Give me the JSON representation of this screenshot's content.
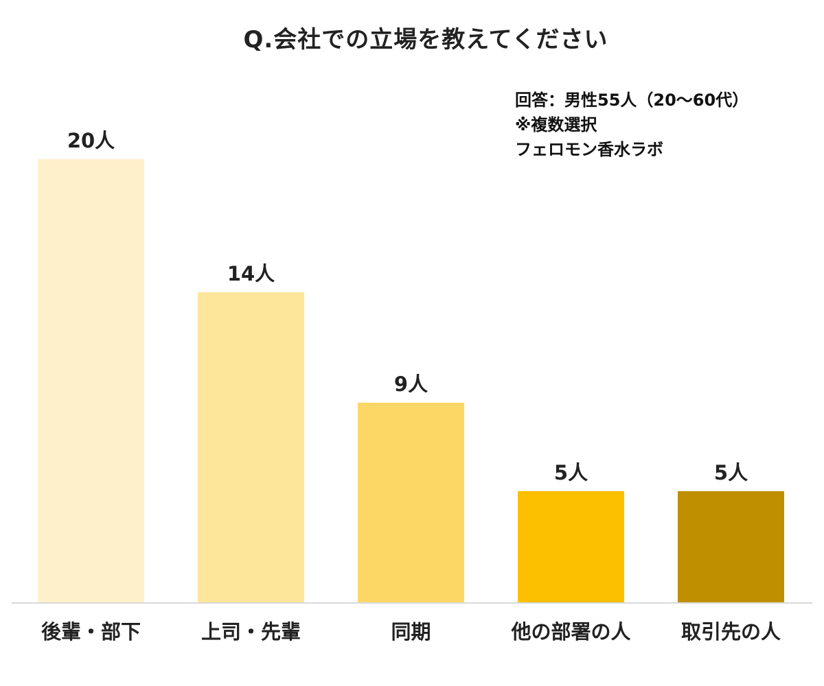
{
  "chart_data": {
    "type": "bar",
    "title": "Q.会社での立場を教えてください",
    "categories": [
      "後輩・部下",
      "上司・先輩",
      "同期",
      "他の部署の人",
      "取引先の人"
    ],
    "values": [
      20,
      14,
      9,
      5,
      5
    ],
    "value_labels": [
      "20人",
      "14人",
      "9人",
      "5人",
      "5人"
    ],
    "colors": [
      "#fff0cc",
      "#fde699",
      "#fdd766",
      "#fdc000",
      "#bf8f00"
    ],
    "xlabel": "",
    "ylabel": "",
    "ylim": [
      0,
      20
    ],
    "grid": false,
    "legend": null,
    "annotations": [
      "回答：男性55人（20〜60代）",
      "※複数選択",
      "フェロモン香水ラボ"
    ]
  },
  "header": {
    "title": "Q.会社での立場を教えてください"
  },
  "note": {
    "line1": "回答：男性55人（20〜60代）",
    "line2": "※複数選択",
    "line3": "フェロモン香水ラボ"
  }
}
